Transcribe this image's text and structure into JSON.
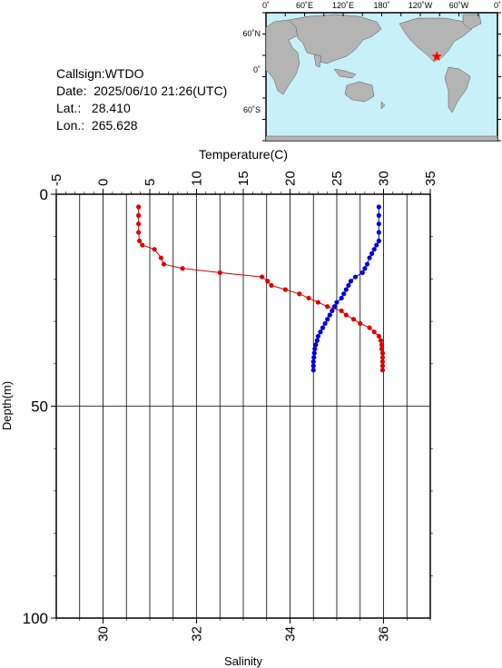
{
  "info": {
    "callsign_label": "Callsign:",
    "callsign": "WTDO",
    "date_label": "Date:",
    "date": "2025/06/10 21:26(UTC)",
    "lat_label": "Lat.:",
    "lat": "28.410",
    "lon_label": "Lon.:",
    "lon": "265.628"
  },
  "map": {
    "top_labels": [
      "0˚",
      "60˚E",
      "120˚E",
      "180˚",
      "120˚W",
      "60˚W",
      "0˚"
    ],
    "left_labels": [
      "60˚N",
      "0˚",
      "60˚S"
    ],
    "ocean_color": "#c8f0f8",
    "land_color": "#b4b4b4",
    "marker_color": "#ff0000",
    "marker_icon": "star-icon"
  },
  "chart_data": {
    "type": "line",
    "title": "",
    "top_axis": {
      "label": "Temperature(C)",
      "range": [
        -5,
        35
      ],
      "ticks": [
        -5,
        0,
        5,
        10,
        15,
        20,
        25,
        30,
        35
      ]
    },
    "bottom_axis": {
      "label": "Salinity",
      "range": [
        29,
        37
      ],
      "ticks": [
        30,
        32,
        34,
        36
      ]
    },
    "left_axis": {
      "label": "Depth(m)",
      "range": [
        0,
        100
      ],
      "ticks": [
        0,
        50,
        100
      ],
      "inverted": true
    },
    "grid": true,
    "series": [
      {
        "axis": "top",
        "color": "#dd0000",
        "depth": [
          3,
          5,
          7,
          9,
          11,
          12,
          13,
          15,
          16.5,
          17.5,
          18.5,
          19.5,
          20.5,
          21.5,
          22.5,
          23.5,
          24.5,
          25.5,
          26.5,
          27.5,
          28.5,
          29.5,
          30.5,
          31.5,
          32.5,
          33.5,
          34.5,
          35.5,
          36.5,
          37.5,
          38.5,
          39.5,
          40.5,
          41.5
        ],
        "values": [
          3.8,
          3.8,
          3.8,
          3.8,
          3.9,
          4.2,
          5.5,
          6.2,
          6.5,
          8.5,
          12.5,
          17.0,
          17.6,
          18.0,
          19.5,
          21.0,
          22.0,
          23.0,
          24.0,
          25.5,
          26.0,
          26.8,
          27.5,
          28.5,
          29.0,
          29.5,
          29.7,
          29.8,
          29.8,
          29.9,
          29.9,
          29.9,
          29.9,
          29.9
        ]
      },
      {
        "axis": "bottom",
        "color": "#0000dd",
        "depth": [
          3,
          5,
          7,
          9,
          11,
          12,
          13,
          14,
          15,
          16.5,
          17.5,
          18.5,
          19.5,
          20.5,
          21.5,
          22.5,
          23.5,
          24.5,
          25.5,
          26.5,
          27.5,
          28.5,
          29.5,
          30.5,
          31.5,
          32.5,
          33.5,
          34.5,
          35.5,
          36.5,
          37.5,
          38.5,
          39.5,
          40.5,
          41.5
        ],
        "values": [
          35.9,
          35.9,
          35.9,
          35.9,
          35.9,
          35.85,
          35.8,
          35.75,
          35.7,
          35.65,
          35.6,
          35.55,
          35.4,
          35.3,
          35.25,
          35.2,
          35.15,
          35.1,
          35.0,
          34.95,
          34.9,
          34.85,
          34.8,
          34.75,
          34.7,
          34.65,
          34.6,
          34.58,
          34.55,
          34.53,
          34.52,
          34.51,
          34.5,
          34.5,
          34.5
        ]
      }
    ]
  }
}
